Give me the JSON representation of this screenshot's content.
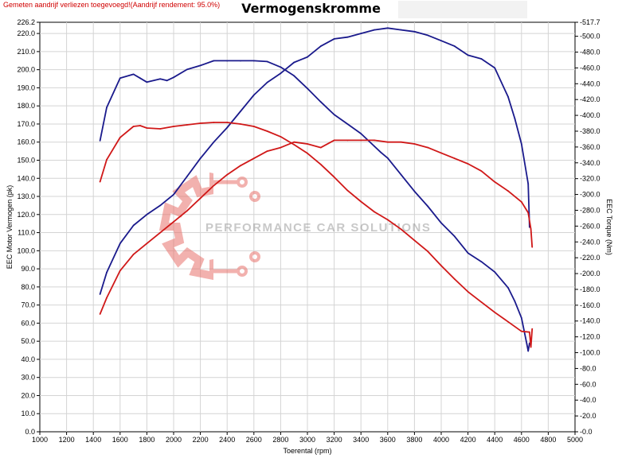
{
  "header": {
    "note": "Gemeten aandrijf verliezen toegevoegd!(Aandrijf rendement: 95.0%)",
    "title": "Vermogenskromme"
  },
  "watermark": {
    "text": "PERFORMANCE CAR SOLUTIONS",
    "logo": "gear-logo-icon"
  },
  "colors": {
    "power_blue": "#1a1a8c",
    "power_red": "#d01818",
    "torque_blue": "#1a1a8c",
    "torque_red": "#d01818",
    "grid": "#d4d4d4"
  },
  "chart_data": {
    "type": "line",
    "xlabel": "Toerental (rpm)",
    "ylabel_left": "EEC Motor Vermogen (pk)",
    "ylabel_right": "EEC Torque (Nm)",
    "xlim": [
      1000,
      5000
    ],
    "ylim_left": [
      0,
      226.2
    ],
    "ylim_right": [
      0,
      517.7
    ],
    "grid": true,
    "x_ticks": [
      "1000",
      "1200",
      "1400",
      "1600",
      "1800",
      "2000",
      "2200",
      "2400",
      "2600",
      "2800",
      "3000",
      "3200",
      "3400",
      "3600",
      "3800",
      "4000",
      "4200",
      "4400",
      "4600",
      "4800",
      "5000"
    ],
    "y_left_ticks": [
      "0.0",
      "10.0",
      "20.0",
      "30.0",
      "40.0",
      "50.0",
      "60.0",
      "70.0",
      "80.0",
      "90.0",
      "100.0",
      "110.0",
      "120.0",
      "130.0",
      "140.0",
      "150.0",
      "160.0",
      "170.0",
      "180.0",
      "190.0",
      "200.0",
      "210.0",
      "220.0",
      "226.2"
    ],
    "y_left_tick_values": [
      0,
      10,
      20,
      30,
      40,
      50,
      60,
      70,
      80,
      90,
      100,
      110,
      120,
      130,
      140,
      150,
      160,
      170,
      180,
      190,
      200,
      210,
      220,
      226.2
    ],
    "y_right_ticks": [
      "0.0",
      "20.0",
      "40.0",
      "60.0",
      "80.0",
      "100.0",
      "120.0",
      "140.0",
      "160.0",
      "180.0",
      "200.0",
      "220.0",
      "240.0",
      "260.0",
      "280.0",
      "300.0",
      "320.0",
      "340.0",
      "360.0",
      "380.0",
      "400.0",
      "420.0",
      "440.0",
      "460.0",
      "480.0",
      "500.0",
      "517.7"
    ],
    "y_right_tick_values": [
      0,
      20,
      40,
      60,
      80,
      100,
      120,
      140,
      160,
      180,
      200,
      220,
      240,
      260,
      280,
      300,
      320,
      340,
      360,
      380,
      400,
      420,
      440,
      460,
      480,
      500,
      517.7
    ],
    "series": [
      {
        "color": "blue",
        "axis": "right",
        "x": [
          1450,
          1500,
          1600,
          1700,
          1750,
          1800,
          1900,
          1950,
          2000,
          2100,
          2200,
          2300,
          2400,
          2500,
          2600,
          2700,
          2800,
          2900,
          3000,
          3100,
          3200,
          3300,
          3400,
          3500,
          3550,
          3600,
          3700,
          3800,
          3900,
          4000,
          4100,
          4200,
          4300,
          4400,
          4500,
          4550,
          4600,
          4640,
          4650,
          4660
        ],
        "y": [
          368,
          410,
          447,
          452,
          447,
          442,
          446,
          444,
          448,
          458,
          463,
          469,
          469,
          469,
          469,
          468,
          461,
          450,
          434,
          417,
          401,
          389,
          377,
          361,
          353,
          346,
          325,
          304,
          285,
          264,
          247,
          226,
          215,
          202,
          182,
          165,
          144,
          111,
          102,
          112
        ]
      },
      {
        "color": "blue",
        "axis": "left",
        "x": [
          1450,
          1500,
          1600,
          1700,
          1800,
          1900,
          2000,
          2100,
          2200,
          2300,
          2400,
          2500,
          2600,
          2700,
          2800,
          2900,
          3000,
          3100,
          3200,
          3300,
          3400,
          3500,
          3600,
          3700,
          3800,
          3900,
          4000,
          4100,
          4200,
          4300,
          4400,
          4500,
          4550,
          4600,
          4650,
          4660
        ],
        "y": [
          76,
          88,
          104,
          114,
          120,
          125,
          131,
          141,
          151,
          160,
          168,
          177,
          186,
          193,
          198,
          204,
          207,
          213,
          217,
          218,
          220,
          222,
          223,
          222,
          221,
          219,
          216,
          213,
          208,
          206,
          201,
          185,
          173,
          159,
          137,
          113
        ]
      },
      {
        "color": "red",
        "axis": "right",
        "x": [
          1450,
          1500,
          1600,
          1700,
          1750,
          1800,
          1900,
          2000,
          2100,
          2200,
          2300,
          2400,
          2500,
          2600,
          2700,
          2800,
          2900,
          3000,
          3100,
          3200,
          3300,
          3400,
          3500,
          3600,
          3700,
          3800,
          3900,
          4000,
          4100,
          4200,
          4300,
          4400,
          4500,
          4600,
          4660,
          4670,
          4680
        ],
        "y": [
          316,
          344,
          372,
          386,
          387,
          384,
          383,
          386,
          388,
          390,
          391,
          391,
          389,
          386,
          380,
          373,
          363,
          352,
          338,
          322,
          305,
          291,
          278,
          268,
          256,
          242,
          228,
          210,
          193,
          177,
          164,
          151,
          139,
          127,
          126,
          107,
          130
        ]
      },
      {
        "color": "red",
        "axis": "left",
        "x": [
          1450,
          1500,
          1600,
          1700,
          1800,
          1900,
          2000,
          2100,
          2200,
          2300,
          2400,
          2500,
          2600,
          2700,
          2800,
          2900,
          3000,
          3100,
          3200,
          3300,
          3400,
          3500,
          3600,
          3700,
          3800,
          3900,
          4000,
          4100,
          4200,
          4300,
          4400,
          4500,
          4600,
          4650,
          4670,
          4680
        ],
        "y": [
          65,
          74,
          89,
          98,
          104,
          110,
          116,
          122,
          129,
          136,
          142,
          147,
          151,
          155,
          157,
          160,
          159,
          157,
          161,
          161,
          161,
          161,
          160,
          160,
          159,
          157,
          154,
          151,
          148,
          144,
          138,
          133,
          127,
          121,
          112,
          102
        ]
      }
    ]
  }
}
